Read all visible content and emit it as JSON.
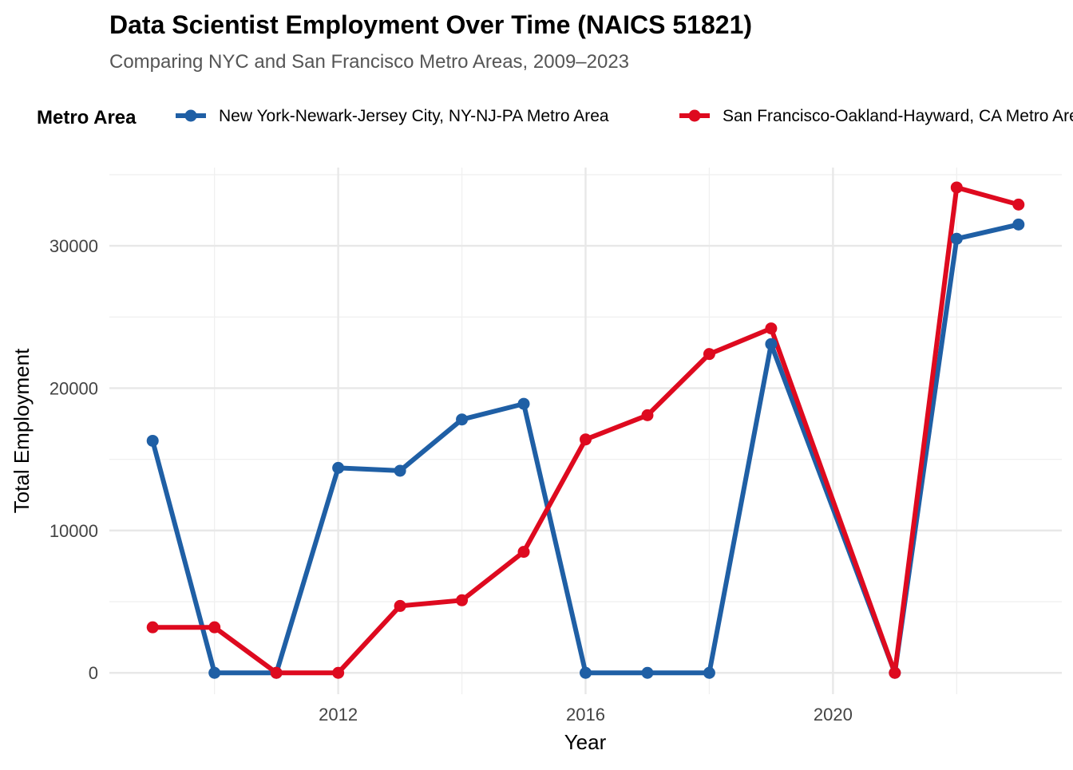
{
  "chart_data": {
    "type": "line",
    "title": "Data Scientist Employment Over Time (NAICS 51821)",
    "subtitle": "Comparing NYC and San Francisco Metro Areas, 2009–2023",
    "xlabel": "Year",
    "ylabel": "Total Employment",
    "legend_title": "Metro Area",
    "legend_position": "top",
    "grid": true,
    "xlim": [
      2008.3,
      2023.7
    ],
    "ylim": [
      -1500,
      35500
    ],
    "x_ticks": [
      2012,
      2016,
      2020
    ],
    "x_minor_ticks": [
      2010,
      2014,
      2018,
      2022
    ],
    "y_ticks": [
      0,
      10000,
      20000,
      30000
    ],
    "y_minor_ticks": [
      5000,
      15000,
      25000,
      35000
    ],
    "x": [
      2009,
      2010,
      2011,
      2012,
      2013,
      2014,
      2015,
      2016,
      2017,
      2018,
      2019,
      2021,
      2022,
      2023
    ],
    "series": [
      {
        "name": "New York-Newark-Jersey City, NY-NJ-PA Metro Area",
        "color": "#1f5fa5",
        "values": [
          16300,
          0,
          0,
          14400,
          14200,
          17800,
          18900,
          0,
          0,
          0,
          23100,
          0,
          30500,
          31500
        ]
      },
      {
        "name": "San Francisco-Oakland-Hayward, CA Metro Area",
        "color": "#de0a1f",
        "values": [
          3200,
          3200,
          0,
          0,
          4700,
          5100,
          8500,
          16400,
          18100,
          22400,
          24200,
          0,
          34100,
          32900
        ]
      }
    ]
  }
}
